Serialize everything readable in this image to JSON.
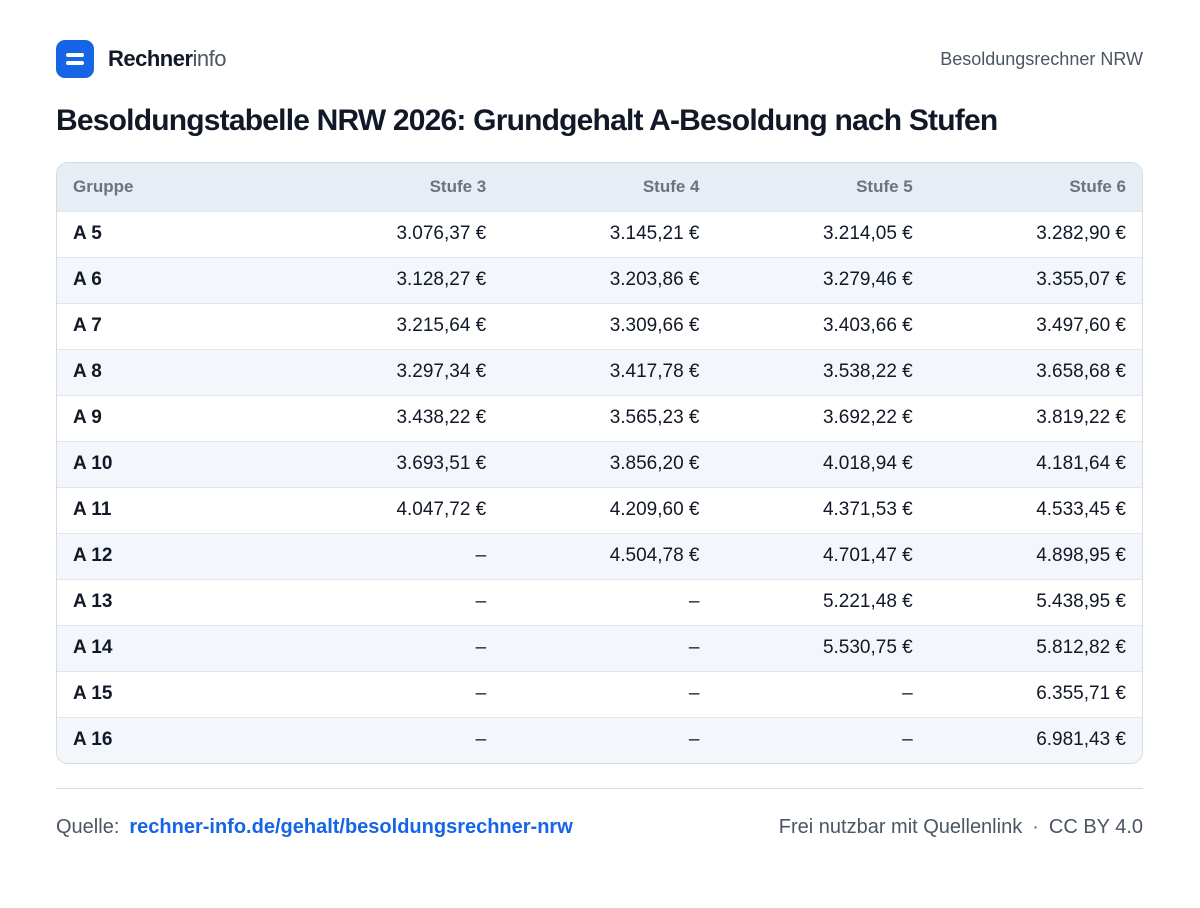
{
  "header": {
    "brand_strong": "Rechner",
    "brand_light": "info",
    "page_label": "Besoldungsrechner NRW"
  },
  "title": "Besoldungstabelle NRW 2026: Grundgehalt A-Besoldung nach Stufen",
  "table": {
    "columns": [
      "Gruppe",
      "Stufe 3",
      "Stufe 4",
      "Stufe 5",
      "Stufe 6"
    ],
    "rows": [
      [
        "A 5",
        "3.076,37 €",
        "3.145,21 €",
        "3.214,05 €",
        "3.282,90 €"
      ],
      [
        "A 6",
        "3.128,27 €",
        "3.203,86 €",
        "3.279,46 €",
        "3.355,07 €"
      ],
      [
        "A 7",
        "3.215,64 €",
        "3.309,66 €",
        "3.403,66 €",
        "3.497,60 €"
      ],
      [
        "A 8",
        "3.297,34 €",
        "3.417,78 €",
        "3.538,22 €",
        "3.658,68 €"
      ],
      [
        "A 9",
        "3.438,22 €",
        "3.565,23 €",
        "3.692,22 €",
        "3.819,22 €"
      ],
      [
        "A 10",
        "3.693,51 €",
        "3.856,20 €",
        "4.018,94 €",
        "4.181,64 €"
      ],
      [
        "A 11",
        "4.047,72 €",
        "4.209,60 €",
        "4.371,53 €",
        "4.533,45 €"
      ],
      [
        "A 12",
        "–",
        "4.504,78 €",
        "4.701,47 €",
        "4.898,95 €"
      ],
      [
        "A 13",
        "–",
        "–",
        "5.221,48 €",
        "5.438,95 €"
      ],
      [
        "A 14",
        "–",
        "–",
        "5.530,75 €",
        "5.812,82 €"
      ],
      [
        "A 15",
        "–",
        "–",
        "–",
        "6.355,71 €"
      ],
      [
        "A 16",
        "–",
        "–",
        "–",
        "6.981,43 €"
      ]
    ]
  },
  "footer": {
    "source_label": "Quelle:",
    "source_link": "rechner-info.de/gehalt/besoldungsrechner-nrw",
    "usage_note": "Frei nutzbar mit Quellenlink",
    "separator": "·",
    "license": "CC BY 4.0"
  },
  "colors": {
    "accent": "#1565e6",
    "header_row_bg": "#e7edf5",
    "stripe_bg": "#f3f6fa",
    "text": "#111827",
    "muted_text": "#4b5563"
  },
  "icons": {
    "logo": "rechnerinfo-logo-icon"
  }
}
